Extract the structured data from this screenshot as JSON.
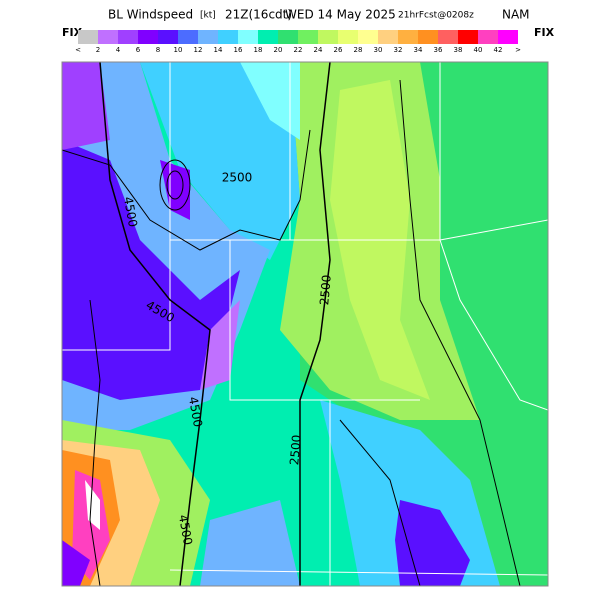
{
  "header": {
    "title_parts": [
      "BL Windspeed",
      "[kt]",
      "21Z(16cdt)",
      "WED 14 May 2025",
      "21hrFcst@0208z",
      "NAM"
    ]
  },
  "legend": {
    "left": "FIX",
    "right": "FIX",
    "labels": [
      "<",
      2,
      4,
      6,
      8,
      10,
      12,
      14,
      16,
      18,
      20,
      22,
      24,
      26,
      28,
      30,
      32,
      34,
      36,
      38,
      40,
      42,
      ">"
    ],
    "colors": [
      "#c8c8c8",
      "#c070ff",
      "#a040ff",
      "#8000ff",
      "#5a10ff",
      "#4c6cff",
      "#6fb4ff",
      "#40d0ff",
      "#80ffff",
      "#00eeb0",
      "#30e070",
      "#70f060",
      "#c0f860",
      "#e8ff70",
      "#ffff90",
      "#ffd080",
      "#ffb040",
      "#ff9020",
      "#ff6060",
      "#ff0000",
      "#ff40c0",
      "#ff00ff"
    ]
  },
  "map": {
    "contour_labels": [
      "2500",
      "4500",
      "4500",
      "2500",
      "4500",
      "2500",
      "4500"
    ]
  }
}
